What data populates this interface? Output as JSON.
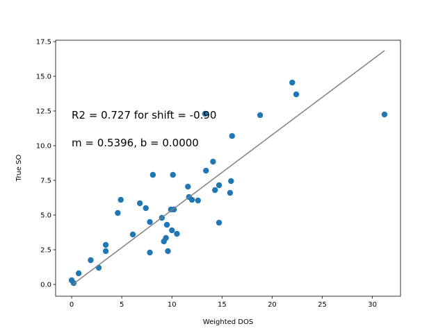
{
  "chart_data": {
    "type": "scatter",
    "xlabel": "Weighted DOS",
    "ylabel": "True SO",
    "xlim": [
      -1.6,
      32.8
    ],
    "ylim": [
      -0.85,
      17.6
    ],
    "xticks": [
      0,
      5,
      10,
      15,
      20,
      25,
      30
    ],
    "xtick_labels": [
      "0",
      "5",
      "10",
      "15",
      "20",
      "25",
      "30"
    ],
    "yticks": [
      0.0,
      2.5,
      5.0,
      7.5,
      10.0,
      12.5,
      15.0,
      17.5
    ],
    "ytick_labels": [
      "0.0",
      "2.5",
      "5.0",
      "7.5",
      "10.0",
      "12.5",
      "15.0",
      "17.5"
    ],
    "grid": false,
    "point_color": "#1f77b4",
    "line_color": "#808080",
    "fit_line": {
      "x": [
        0.1,
        31.2
      ],
      "y": [
        0.0,
        16.85
      ]
    },
    "annotations": [
      "R2 = 0.727 for shift = -0.90",
      "m = 0.5396, b = 0.0000"
    ],
    "points": [
      {
        "x": 0.0,
        "y": 0.3
      },
      {
        "x": 0.2,
        "y": 0.1
      },
      {
        "x": 0.7,
        "y": 0.8
      },
      {
        "x": 1.9,
        "y": 1.75
      },
      {
        "x": 2.7,
        "y": 1.2
      },
      {
        "x": 3.4,
        "y": 2.85
      },
      {
        "x": 3.4,
        "y": 2.4
      },
      {
        "x": 4.6,
        "y": 5.15
      },
      {
        "x": 4.9,
        "y": 6.1
      },
      {
        "x": 6.1,
        "y": 3.6
      },
      {
        "x": 6.8,
        "y": 5.85
      },
      {
        "x": 7.4,
        "y": 5.5
      },
      {
        "x": 7.8,
        "y": 4.5
      },
      {
        "x": 7.8,
        "y": 2.3
      },
      {
        "x": 8.1,
        "y": 7.9
      },
      {
        "x": 9.0,
        "y": 4.8
      },
      {
        "x": 9.2,
        "y": 3.1
      },
      {
        "x": 9.4,
        "y": 3.35
      },
      {
        "x": 9.5,
        "y": 4.3
      },
      {
        "x": 9.6,
        "y": 2.4
      },
      {
        "x": 9.9,
        "y": 5.4
      },
      {
        "x": 10.0,
        "y": 3.9
      },
      {
        "x": 10.1,
        "y": 7.9
      },
      {
        "x": 10.2,
        "y": 5.4
      },
      {
        "x": 10.5,
        "y": 3.65
      },
      {
        "x": 11.6,
        "y": 7.05
      },
      {
        "x": 11.7,
        "y": 6.3
      },
      {
        "x": 12.0,
        "y": 6.1
      },
      {
        "x": 12.6,
        "y": 6.05
      },
      {
        "x": 13.3,
        "y": 12.3
      },
      {
        "x": 13.4,
        "y": 8.2
      },
      {
        "x": 14.1,
        "y": 8.85
      },
      {
        "x": 14.3,
        "y": 6.8
      },
      {
        "x": 14.7,
        "y": 7.15
      },
      {
        "x": 14.7,
        "y": 4.45
      },
      {
        "x": 15.8,
        "y": 6.6
      },
      {
        "x": 15.9,
        "y": 7.45
      },
      {
        "x": 16.0,
        "y": 10.7
      },
      {
        "x": 18.8,
        "y": 12.2
      },
      {
        "x": 22.0,
        "y": 14.55
      },
      {
        "x": 22.4,
        "y": 13.7
      },
      {
        "x": 31.2,
        "y": 12.25
      }
    ]
  }
}
